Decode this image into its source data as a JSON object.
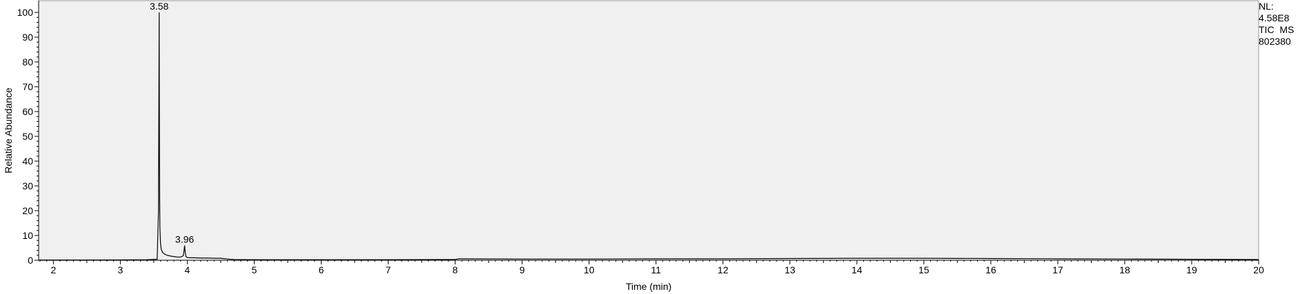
{
  "chart_data": {
    "type": "line",
    "title": "",
    "xlabel": "Time (min)",
    "ylabel": "Relative Abundance",
    "xlim": [
      1.78,
      20.0
    ],
    "ylim": [
      0,
      100
    ],
    "xticks": [
      2,
      3,
      4,
      5,
      6,
      7,
      8,
      9,
      10,
      11,
      12,
      13,
      14,
      15,
      16,
      17,
      18,
      19,
      20
    ],
    "yticks": [
      0,
      10,
      20,
      30,
      40,
      50,
      60,
      70,
      80,
      90,
      100
    ],
    "grid": false,
    "plot_background": "#f0f0f0",
    "line_color": "#000000",
    "series": [
      {
        "x": [
          1.78,
          2.5,
          3.0,
          3.4,
          3.55,
          3.57,
          3.575,
          3.58,
          3.585,
          3.59,
          3.6,
          3.61,
          3.63,
          3.66,
          3.7,
          3.75,
          3.8,
          3.85,
          3.9,
          3.94,
          3.95,
          3.96,
          3.97,
          3.98,
          4.0,
          4.05,
          4.1,
          4.2,
          4.3,
          4.4,
          4.5,
          4.6,
          4.7,
          5.0,
          6.0,
          7.0,
          8.0,
          8.05,
          9.0,
          10.0,
          11.0,
          12.0,
          13.0,
          14.0,
          15.0,
          16.0,
          17.0,
          18.0,
          19.0,
          20.0
        ],
        "y": [
          0.1,
          0.1,
          0.15,
          0.2,
          0.4,
          20,
          61,
          100,
          37,
          14,
          7,
          4.5,
          3.2,
          2.5,
          2.0,
          1.7,
          1.5,
          1.3,
          1.3,
          1.8,
          3.5,
          6,
          3,
          1.5,
          1.1,
          1.0,
          1.0,
          0.9,
          0.9,
          0.8,
          0.8,
          0.5,
          0.3,
          0.2,
          0.2,
          0.2,
          0.3,
          0.6,
          0.5,
          0.5,
          0.6,
          0.6,
          0.7,
          0.8,
          0.8,
          0.7,
          0.6,
          0.5,
          0.4,
          0.3
        ]
      }
    ],
    "peak_labels": [
      {
        "x": 3.58,
        "y": 100,
        "text": "3.58"
      },
      {
        "x": 3.96,
        "y": 6,
        "text": "3.96"
      }
    ]
  },
  "info": {
    "nl_label": "NL:",
    "nl_value": "4.58E8",
    "scan_filter": "TIC  MS",
    "sample_id": "802380"
  }
}
